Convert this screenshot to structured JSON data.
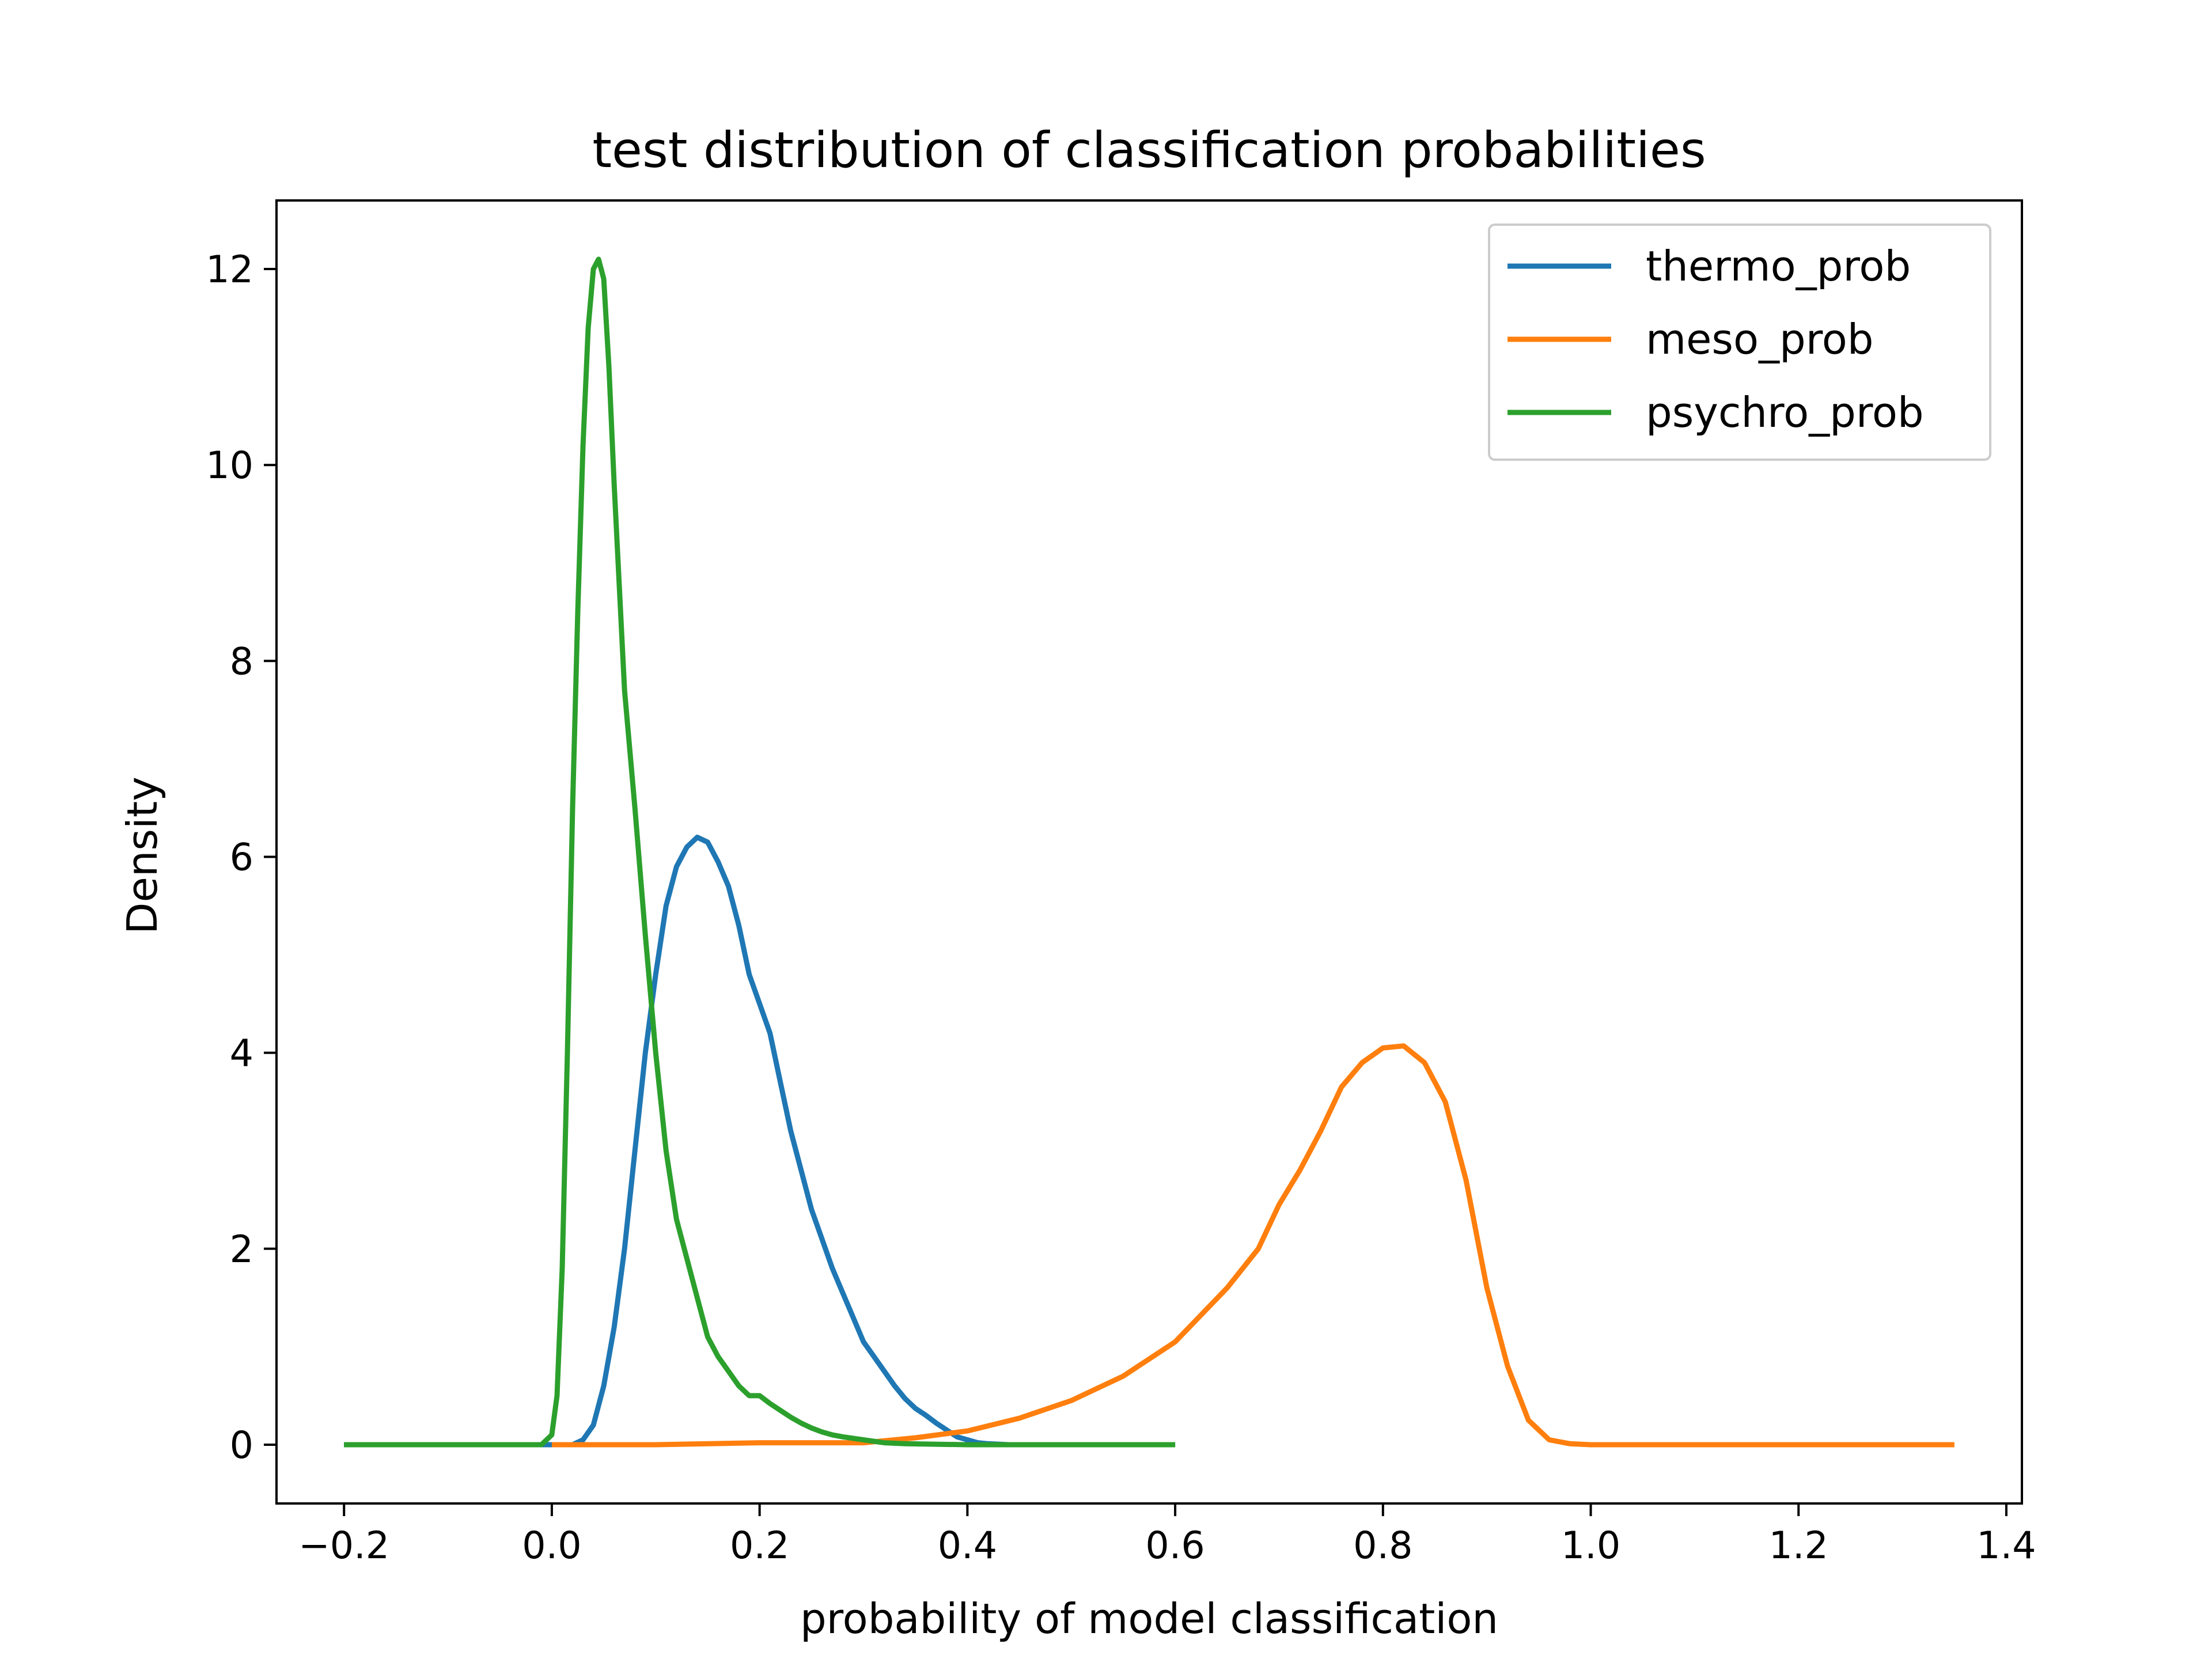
{
  "chart_data": {
    "type": "line",
    "title": "test distribution of classification probabilities",
    "xlabel": "probability of model classification",
    "ylabel": "Density",
    "xlim": [
      -0.265,
      1.415
    ],
    "ylim": [
      -0.6,
      12.7
    ],
    "xticks": [
      -0.2,
      0.0,
      0.2,
      0.4,
      0.6,
      0.8,
      1.0,
      1.2,
      1.4
    ],
    "xtick_labels": [
      "−0.2",
      "0.0",
      "0.2",
      "0.4",
      "0.6",
      "0.8",
      "1.0",
      "1.2",
      "1.4"
    ],
    "yticks": [
      0,
      2,
      4,
      6,
      8,
      10,
      12
    ],
    "ytick_labels": [
      "0",
      "2",
      "4",
      "6",
      "8",
      "10",
      "12"
    ],
    "grid": false,
    "legend_position": "top-right",
    "series": [
      {
        "name": "thermo_prob",
        "color": "#1f77b4",
        "points": [
          [
            -0.2,
            0
          ],
          [
            0.02,
            0
          ],
          [
            0.03,
            0.05
          ],
          [
            0.04,
            0.2
          ],
          [
            0.05,
            0.6
          ],
          [
            0.06,
            1.2
          ],
          [
            0.07,
            2.0
          ],
          [
            0.08,
            3.0
          ],
          [
            0.09,
            4.0
          ],
          [
            0.1,
            4.8
          ],
          [
            0.11,
            5.5
          ],
          [
            0.12,
            5.9
          ],
          [
            0.13,
            6.1
          ],
          [
            0.14,
            6.2
          ],
          [
            0.15,
            6.15
          ],
          [
            0.16,
            5.95
          ],
          [
            0.17,
            5.7
          ],
          [
            0.18,
            5.3
          ],
          [
            0.19,
            4.8
          ],
          [
            0.2,
            4.5
          ],
          [
            0.21,
            4.2
          ],
          [
            0.22,
            3.7
          ],
          [
            0.23,
            3.2
          ],
          [
            0.24,
            2.8
          ],
          [
            0.25,
            2.4
          ],
          [
            0.26,
            2.1
          ],
          [
            0.27,
            1.8
          ],
          [
            0.28,
            1.55
          ],
          [
            0.29,
            1.3
          ],
          [
            0.3,
            1.05
          ],
          [
            0.31,
            0.9
          ],
          [
            0.32,
            0.75
          ],
          [
            0.33,
            0.6
          ],
          [
            0.34,
            0.47
          ],
          [
            0.35,
            0.37
          ],
          [
            0.36,
            0.3
          ],
          [
            0.37,
            0.22
          ],
          [
            0.38,
            0.15
          ],
          [
            0.39,
            0.08
          ],
          [
            0.4,
            0.05
          ],
          [
            0.41,
            0.02
          ],
          [
            0.42,
            0.01
          ],
          [
            0.44,
            0
          ],
          [
            0.6,
            0
          ]
        ]
      },
      {
        "name": "meso_prob",
        "color": "#ff7f0e",
        "points": [
          [
            0.0,
            0
          ],
          [
            0.1,
            0
          ],
          [
            0.2,
            0.02
          ],
          [
            0.3,
            0.02
          ],
          [
            0.35,
            0.07
          ],
          [
            0.4,
            0.14
          ],
          [
            0.45,
            0.27
          ],
          [
            0.5,
            0.45
          ],
          [
            0.55,
            0.7
          ],
          [
            0.6,
            1.05
          ],
          [
            0.65,
            1.6
          ],
          [
            0.68,
            2.0
          ],
          [
            0.7,
            2.45
          ],
          [
            0.72,
            2.8
          ],
          [
            0.74,
            3.2
          ],
          [
            0.76,
            3.65
          ],
          [
            0.78,
            3.9
          ],
          [
            0.8,
            4.05
          ],
          [
            0.82,
            4.07
          ],
          [
            0.84,
            3.9
          ],
          [
            0.86,
            3.5
          ],
          [
            0.88,
            2.7
          ],
          [
            0.9,
            1.6
          ],
          [
            0.92,
            0.8
          ],
          [
            0.94,
            0.25
          ],
          [
            0.96,
            0.05
          ],
          [
            0.98,
            0.01
          ],
          [
            1.0,
            0
          ],
          [
            1.35,
            0
          ]
        ]
      },
      {
        "name": "psychro_prob",
        "color": "#2ca02c",
        "points": [
          [
            -0.2,
            0
          ],
          [
            -0.01,
            0
          ],
          [
            0.0,
            0.1
          ],
          [
            0.005,
            0.5
          ],
          [
            0.01,
            1.8
          ],
          [
            0.015,
            4.0
          ],
          [
            0.02,
            6.5
          ],
          [
            0.025,
            8.5
          ],
          [
            0.03,
            10.2
          ],
          [
            0.035,
            11.4
          ],
          [
            0.04,
            12.0
          ],
          [
            0.045,
            12.1
          ],
          [
            0.05,
            11.9
          ],
          [
            0.055,
            11.0
          ],
          [
            0.06,
            9.8
          ],
          [
            0.07,
            7.7
          ],
          [
            0.08,
            6.5
          ],
          [
            0.09,
            5.2
          ],
          [
            0.1,
            4.0
          ],
          [
            0.11,
            3.0
          ],
          [
            0.12,
            2.3
          ],
          [
            0.13,
            1.9
          ],
          [
            0.14,
            1.5
          ],
          [
            0.15,
            1.1
          ],
          [
            0.16,
            0.9
          ],
          [
            0.17,
            0.75
          ],
          [
            0.18,
            0.6
          ],
          [
            0.19,
            0.5
          ],
          [
            0.2,
            0.5
          ],
          [
            0.21,
            0.42
          ],
          [
            0.22,
            0.35
          ],
          [
            0.23,
            0.28
          ],
          [
            0.24,
            0.22
          ],
          [
            0.25,
            0.17
          ],
          [
            0.26,
            0.13
          ],
          [
            0.27,
            0.1
          ],
          [
            0.28,
            0.08
          ],
          [
            0.3,
            0.05
          ],
          [
            0.32,
            0.02
          ],
          [
            0.34,
            0.01
          ],
          [
            0.4,
            0
          ],
          [
            0.6,
            0
          ]
        ]
      }
    ]
  }
}
